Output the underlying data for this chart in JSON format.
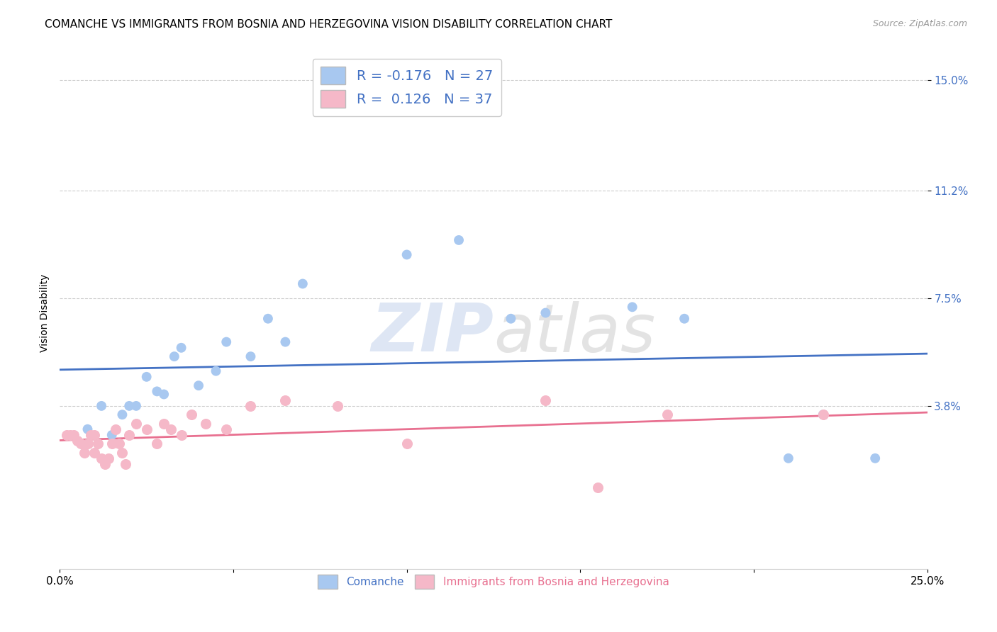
{
  "title": "COMANCHE VS IMMIGRANTS FROM BOSNIA AND HERZEGOVINA VISION DISABILITY CORRELATION CHART",
  "source": "Source: ZipAtlas.com",
  "ylabel": "Vision Disability",
  "xlim": [
    0.0,
    0.25
  ],
  "ylim": [
    -0.018,
    0.158
  ],
  "xticks": [
    0.0,
    0.05,
    0.1,
    0.15,
    0.2,
    0.25
  ],
  "xticklabels": [
    "0.0%",
    "",
    "",
    "",
    "",
    "25.0%"
  ],
  "ytick_positions": [
    0.038,
    0.075,
    0.112,
    0.15
  ],
  "ytick_labels": [
    "3.8%",
    "7.5%",
    "11.2%",
    "15.0%"
  ],
  "legend_blue_r": "-0.176",
  "legend_blue_n": "27",
  "legend_pink_r": "0.126",
  "legend_pink_n": "37",
  "blue_color": "#A8C8F0",
  "pink_color": "#F5B8C8",
  "trendline_blue_color": "#4472C4",
  "trendline_pink_color": "#E87090",
  "watermark_zip": "ZIP",
  "watermark_atlas": "atlas",
  "blue_scatter_x": [
    0.008,
    0.012,
    0.015,
    0.018,
    0.02,
    0.022,
    0.025,
    0.028,
    0.03,
    0.033,
    0.035,
    0.04,
    0.045,
    0.048,
    0.055,
    0.06,
    0.065,
    0.07,
    0.1,
    0.115,
    0.13,
    0.14,
    0.165,
    0.18,
    0.21,
    0.22,
    0.235
  ],
  "blue_scatter_y": [
    0.03,
    0.038,
    0.028,
    0.035,
    0.038,
    0.038,
    0.048,
    0.043,
    0.042,
    0.055,
    0.058,
    0.045,
    0.05,
    0.06,
    0.055,
    0.068,
    0.06,
    0.08,
    0.09,
    0.095,
    0.068,
    0.07,
    0.072,
    0.068,
    0.02,
    0.035,
    0.02
  ],
  "pink_scatter_x": [
    0.002,
    0.003,
    0.004,
    0.005,
    0.006,
    0.007,
    0.008,
    0.009,
    0.01,
    0.01,
    0.011,
    0.012,
    0.013,
    0.014,
    0.015,
    0.016,
    0.017,
    0.018,
    0.019,
    0.02,
    0.022,
    0.025,
    0.028,
    0.03,
    0.032,
    0.035,
    0.038,
    0.042,
    0.048,
    0.055,
    0.065,
    0.08,
    0.1,
    0.14,
    0.155,
    0.175,
    0.22
  ],
  "pink_scatter_y": [
    0.028,
    0.028,
    0.028,
    0.026,
    0.025,
    0.022,
    0.025,
    0.028,
    0.028,
    0.022,
    0.025,
    0.02,
    0.018,
    0.02,
    0.025,
    0.03,
    0.025,
    0.022,
    0.018,
    0.028,
    0.032,
    0.03,
    0.025,
    0.032,
    0.03,
    0.028,
    0.035,
    0.032,
    0.03,
    0.038,
    0.04,
    0.038,
    0.025,
    0.04,
    0.01,
    0.035,
    0.035
  ],
  "title_fontsize": 11,
  "axis_label_fontsize": 10,
  "tick_fontsize": 11,
  "background_color": "#FFFFFF",
  "grid_color": "#CCCCCC"
}
